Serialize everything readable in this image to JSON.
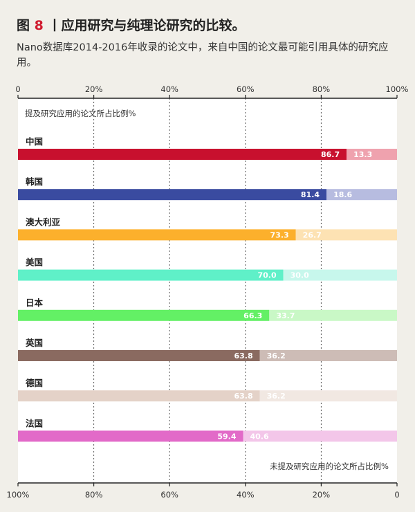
{
  "header": {
    "fig_label": "图",
    "fig_number": "8",
    "title_rest": "丨应用研究与纯理论研究的比较。",
    "subtitle": "Nano数据库2014-2016年收录的论文中，来自中国的论文最可能引用具体的研究应用。"
  },
  "chart_data": {
    "type": "bar",
    "orientation": "horizontal",
    "stacked": true,
    "normalized": "percent",
    "top_axis_ticks": [
      "0",
      "20%",
      "40%",
      "60%",
      "80%",
      "100%"
    ],
    "bottom_axis_ticks": [
      "100%",
      "80%",
      "60%",
      "40%",
      "20%",
      "0"
    ],
    "xlim": [
      0,
      100
    ],
    "top_label": "提及研究应用的论文所占比例%",
    "bottom_label": "未提及研究应用的论文所占比例%",
    "grid": true,
    "categories": [
      "中国",
      "韩国",
      "澳大利亚",
      "美国",
      "日本",
      "英国",
      "德国",
      "法国"
    ],
    "series": [
      {
        "values": [
          86.7,
          81.4,
          73.3,
          70.0,
          66.3,
          63.8,
          63.8,
          59.4
        ]
      },
      {
        "values": [
          13.3,
          18.6,
          26.7,
          30.0,
          33.7,
          36.2,
          36.2,
          40.6
        ]
      }
    ],
    "value_labels_a": [
      "86.7",
      "81.4",
      "73.3",
      "70.0",
      "66.3",
      "63.8",
      "63.8",
      "59.4"
    ],
    "value_labels_b": [
      "13.3",
      "18.6",
      "26.7",
      "30.0",
      "33.7",
      "36.2",
      "36.2",
      "40.6"
    ],
    "colors_a": [
      "#c8102e",
      "#3a4ba0",
      "#fcb02c",
      "#5ff0c8",
      "#63f065",
      "#8a6a60",
      "#e4d2c8",
      "#e26ac8"
    ],
    "colors_b": [
      "#efa2ae",
      "#b7bce0",
      "#fde2b3",
      "#c7f7ec",
      "#c9f8c6",
      "#cdbcb6",
      "#f1e8e2",
      "#f3c6e9"
    ]
  }
}
